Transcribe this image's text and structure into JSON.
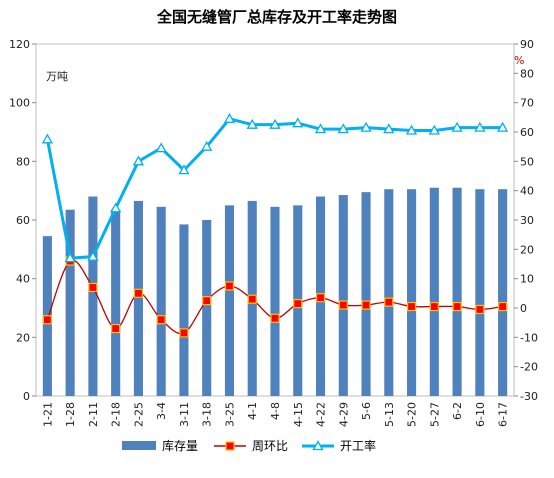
{
  "chart_data": {
    "type": "bar",
    "title": "全国无缝管厂总库存及开工率走势图",
    "left_unit": "万吨",
    "right_unit": "%",
    "categories": [
      "1-21",
      "1-28",
      "2-11",
      "2-18",
      "2-25",
      "3-4",
      "3-11",
      "3-18",
      "3-25",
      "4-1",
      "4-8",
      "4-15",
      "4-22",
      "4-29",
      "5-6",
      "5-13",
      "5-20",
      "5-27",
      "6-2",
      "6-10",
      "6-17"
    ],
    "left_axis": {
      "ylim": [
        0,
        120
      ],
      "ticks": [
        "0",
        "20",
        "40",
        "60",
        "80",
        "100",
        "120"
      ]
    },
    "right_axis": {
      "ylim": [
        -30,
        90
      ],
      "ticks": [
        "-30",
        "-20",
        "-10",
        "0",
        "10",
        "20",
        "30",
        "40",
        "50",
        "60",
        "70",
        "80",
        "90"
      ]
    },
    "grid": false,
    "legend_position": "bottom",
    "series": [
      {
        "name": "库存量",
        "type": "bar",
        "axis": "left",
        "color": "#4f81bd",
        "values": [
          54.5,
          63.5,
          68,
          63.5,
          66.5,
          64.5,
          58.5,
          60,
          65,
          66.5,
          64.5,
          65,
          68,
          68.5,
          69.5,
          70.5,
          70.5,
          71,
          71,
          70.5,
          70.5
        ]
      },
      {
        "name": "周环比",
        "type": "line",
        "axis": "right",
        "color": "#c00000",
        "marker_fill": "#ff0000",
        "marker_edge": "#ffc000",
        "values": [
          -4,
          16,
          7,
          -7,
          5,
          -4,
          -8.5,
          2.5,
          7.5,
          3,
          -3.5,
          1.5,
          3.5,
          1,
          1,
          2,
          0.5,
          0.5,
          0.5,
          -0.5,
          0.5
        ]
      },
      {
        "name": "开工率",
        "type": "line",
        "axis": "right",
        "color": "#00b0f0",
        "marker": "triangle",
        "values": [
          57.5,
          17,
          17.5,
          34,
          50,
          54.5,
          47,
          55,
          64.5,
          62.5,
          62.5,
          63,
          61,
          61,
          61.5,
          61,
          60.5,
          60.5,
          61.5,
          61.5,
          61.5
        ]
      }
    ]
  }
}
